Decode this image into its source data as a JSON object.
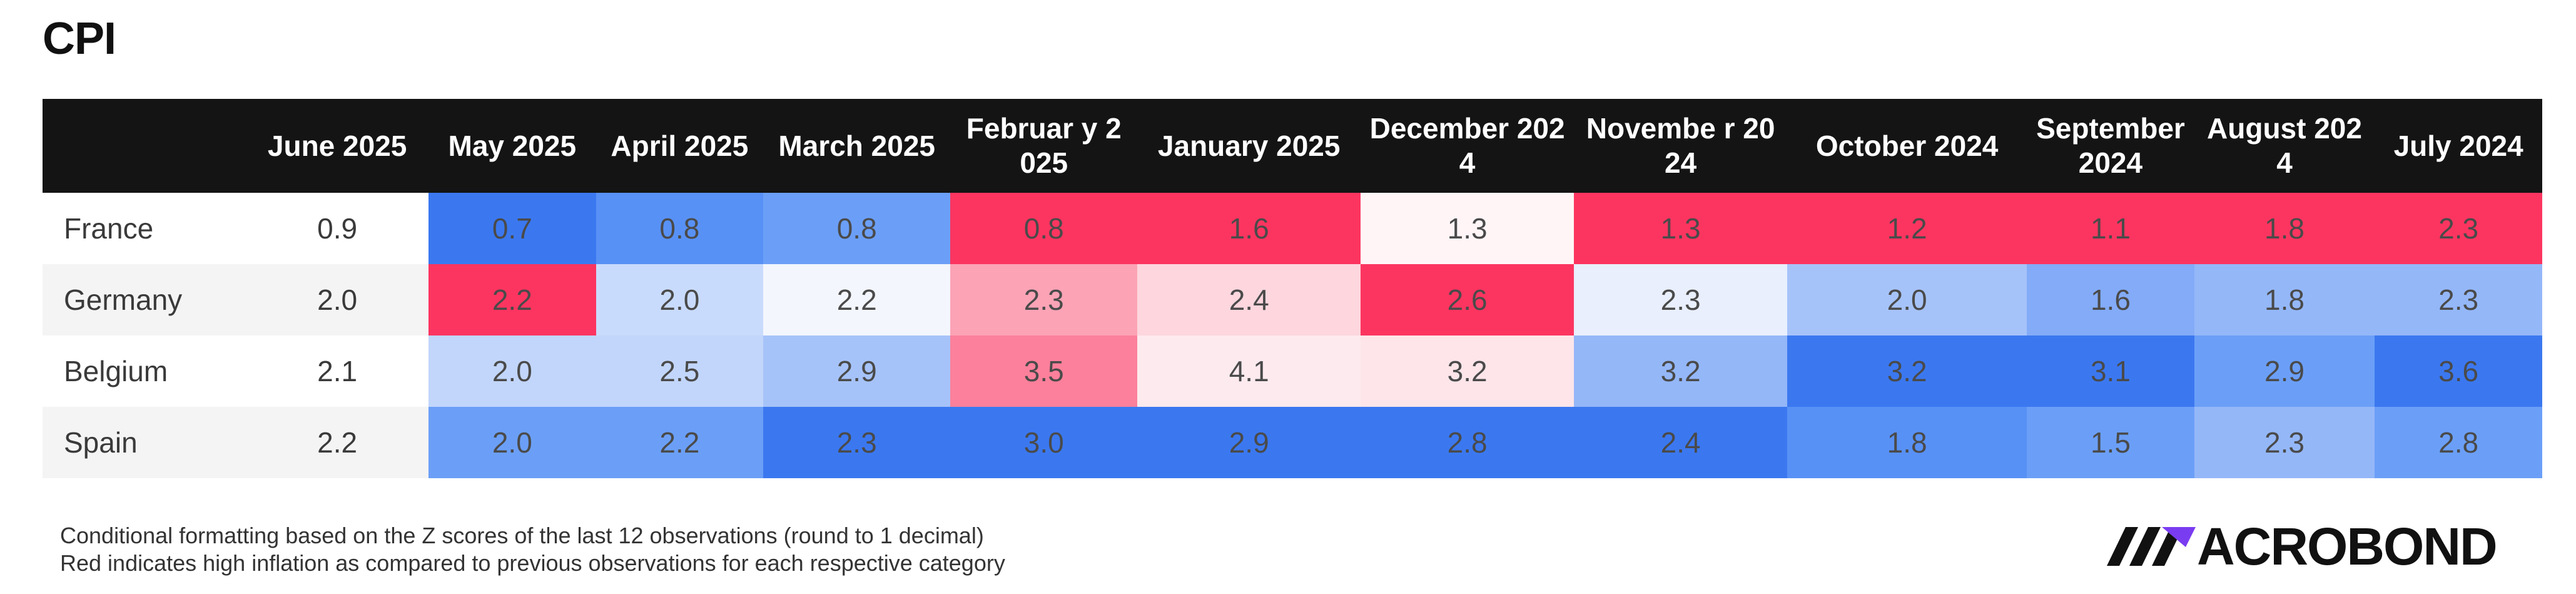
{
  "chart_data": {
    "type": "heatmap",
    "title": "CPI",
    "columns": [
      "June 2025",
      "May 2025",
      "April 2025",
      "March 2025",
      "Februar y 2025",
      "January 2025",
      "December 2024",
      "Novembe r 2024",
      "October 2024",
      "September 2024",
      "August 2024",
      "July 2024"
    ],
    "rows": [
      {
        "label": "France",
        "values": [
          "0.9",
          "0.7",
          "0.8",
          "0.8",
          "0.8",
          "1.6",
          "1.3",
          "1.3",
          "1.2",
          "1.1",
          "1.8",
          "2.3"
        ]
      },
      {
        "label": "Germany",
        "values": [
          "2.0",
          "2.2",
          "2.0",
          "2.2",
          "2.3",
          "2.4",
          "2.6",
          "2.3",
          "2.0",
          "1.6",
          "1.8",
          "2.3"
        ]
      },
      {
        "label": "Belgium",
        "values": [
          "2.1",
          "2.0",
          "2.5",
          "2.9",
          "3.5",
          "4.1",
          "3.2",
          "3.2",
          "3.2",
          "3.1",
          "2.9",
          "3.6"
        ]
      },
      {
        "label": "Spain",
        "values": [
          "2.2",
          "2.0",
          "2.2",
          "2.3",
          "3.0",
          "2.9",
          "2.8",
          "2.4",
          "1.8",
          "1.5",
          "2.3",
          "2.8"
        ]
      }
    ],
    "cell_colors": [
      [
        null,
        "#3b78f0",
        "#5891f5",
        "#6b9ff7",
        "#fc3560",
        "#fc3560",
        "#fff5f7",
        "#fc3560",
        "#fc3560",
        "#fc3560",
        "#fc3560",
        "#fc3560"
      ],
      [
        null,
        "#fc3560",
        "#c9dbfc",
        "#f3f6fd",
        "#fca3b6",
        "#fdd6de",
        "#fc3560",
        "#e9effd",
        "#a6c3f9",
        "#83abf7",
        "#94b7f8",
        "#94b7f8"
      ],
      [
        null,
        "#c2d6fb",
        "#c2d6fb",
        "#a6c3f9",
        "#fc809b",
        "#fdeaee",
        "#fde5ea",
        "#94b7f8",
        "#3b78f0",
        "#3b78f0",
        "#6b9ff7",
        "#3b78f0"
      ],
      [
        null,
        "#6b9ff7",
        "#6b9ff7",
        "#3b78f0",
        "#3b78f0",
        "#3b78f0",
        "#3b78f0",
        "#3b78f0",
        "#5891f5",
        "#6b9ff7",
        "#94b7f8",
        "#6b9ff7"
      ]
    ],
    "color_scale": {
      "high": "#fc3560",
      "low": "#3b78f0",
      "neutral": "#ffffff"
    }
  },
  "footnotes": [
    "Conditional formatting based on the Z scores of the last 12 observations (round to 1 decimal)",
    "Red indicates high inflation as compared to previous observations for each respective category"
  ],
  "logo": {
    "text": "ACROBOND"
  }
}
